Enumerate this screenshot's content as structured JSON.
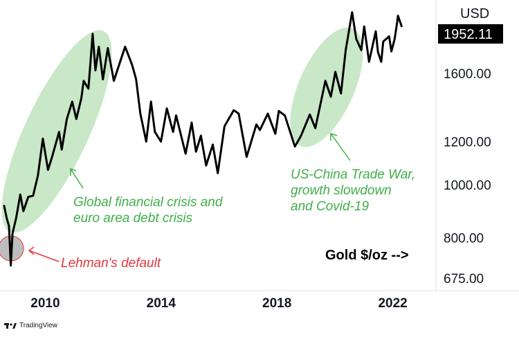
{
  "chart_data": {
    "type": "line",
    "series": [
      {
        "values": [
          [
            "2008-08-01",
            915
          ],
          [
            "2008-09-01",
            870
          ],
          [
            "2008-10-01",
            840
          ],
          [
            "2008-10-24",
            712
          ],
          [
            "2008-11-15",
            815
          ],
          [
            "2008-12-31",
            870
          ],
          [
            "2009-02-20",
            960
          ],
          [
            "2009-04-01",
            895
          ],
          [
            "2009-06-01",
            950
          ],
          [
            "2009-08-01",
            955
          ],
          [
            "2009-10-01",
            1040
          ],
          [
            "2009-12-02",
            1215
          ],
          [
            "2010-02-05",
            1065
          ],
          [
            "2010-04-01",
            1130
          ],
          [
            "2010-06-25",
            1250
          ],
          [
            "2010-07-28",
            1160
          ],
          [
            "2010-10-01",
            1320
          ],
          [
            "2010-12-07",
            1420
          ],
          [
            "2011-01-28",
            1320
          ],
          [
            "2011-04-01",
            1440
          ],
          [
            "2011-05-01",
            1550
          ],
          [
            "2011-06-30",
            1500
          ],
          [
            "2011-08-22",
            1890
          ],
          [
            "2011-09-26",
            1620
          ],
          [
            "2011-11-08",
            1790
          ],
          [
            "2011-12-29",
            1560
          ],
          [
            "2012-02-29",
            1780
          ],
          [
            "2012-05-15",
            1550
          ],
          [
            "2012-10-05",
            1790
          ],
          [
            "2012-12-31",
            1660
          ],
          [
            "2013-02-20",
            1560
          ],
          [
            "2013-04-15",
            1350
          ],
          [
            "2013-06-28",
            1200
          ],
          [
            "2013-08-27",
            1420
          ],
          [
            "2013-10-15",
            1250
          ],
          [
            "2013-12-31",
            1200
          ],
          [
            "2014-03-15",
            1380
          ],
          [
            "2014-06-01",
            1250
          ],
          [
            "2014-07-10",
            1340
          ],
          [
            "2014-11-06",
            1140
          ],
          [
            "2015-01-22",
            1300
          ],
          [
            "2015-03-17",
            1150
          ],
          [
            "2015-05-18",
            1230
          ],
          [
            "2015-07-24",
            1085
          ],
          [
            "2015-10-15",
            1185
          ],
          [
            "2015-12-17",
            1050
          ],
          [
            "2016-03-11",
            1280
          ],
          [
            "2016-07-06",
            1370
          ],
          [
            "2016-09-06",
            1350
          ],
          [
            "2016-12-15",
            1125
          ],
          [
            "2017-04-17",
            1290
          ],
          [
            "2017-06-01",
            1260
          ],
          [
            "2017-09-08",
            1350
          ],
          [
            "2017-12-12",
            1240
          ],
          [
            "2018-01-25",
            1365
          ],
          [
            "2018-04-11",
            1340
          ],
          [
            "2018-08-16",
            1175
          ],
          [
            "2018-11-01",
            1230
          ],
          [
            "2019-02-20",
            1345
          ],
          [
            "2019-05-01",
            1270
          ],
          [
            "2019-09-04",
            1550
          ],
          [
            "2019-11-12",
            1450
          ],
          [
            "2020-01-08",
            1610
          ],
          [
            "2020-03-19",
            1470
          ],
          [
            "2020-05-18",
            1765
          ],
          [
            "2020-08-06",
            2070
          ],
          [
            "2020-09-28",
            1850
          ],
          [
            "2020-11-30",
            1765
          ],
          [
            "2021-01-06",
            1950
          ],
          [
            "2021-03-08",
            1680
          ],
          [
            "2021-06-01",
            1910
          ],
          [
            "2021-06-29",
            1750
          ],
          [
            "2021-08-09",
            1680
          ],
          [
            "2021-09-03",
            1830
          ],
          [
            "2021-11-16",
            1870
          ],
          [
            "2021-12-15",
            1755
          ],
          [
            "2022-01-25",
            1850
          ],
          [
            "2022-02-24",
            1975
          ],
          [
            "2022-03-08",
            2040
          ],
          [
            "2022-04-22",
            1952.11
          ]
        ]
      }
    ],
    "y_scale": "log",
    "ylim": [
      640,
      2180
    ],
    "xlim": [
      "2008-08-01",
      "2023-06-30"
    ],
    "x_tick_labels": [
      "2010",
      "2014",
      "2018",
      "2022"
    ],
    "y_tick_labels": [
      "1600.00",
      "1200.00",
      "1000.00",
      "800.00",
      "675.00"
    ],
    "y_tick_values": [
      1600,
      1200,
      1000,
      800,
      675
    ],
    "currency": "USD",
    "last_price": "1952.11",
    "grid": false,
    "series_title": "Gold $/oz -->",
    "annotations": [
      {
        "lines": [
          "Global financial crisis and",
          "euro area debt crisis"
        ],
        "color": "#3fae49"
      },
      {
        "lines": [
          "US-China Trade War,",
          "growth slowdown",
          "and Covid-19"
        ],
        "color": "#3fae49"
      },
      {
        "lines": [
          "Lehman's default"
        ],
        "color": "#e2383f"
      }
    ],
    "colors": {
      "line": "#000000",
      "highlight": "#b7e0b4",
      "lehman_fill": "#bdbdbd",
      "lehman_edge": "#e2383f",
      "price_badge": "#000000"
    }
  },
  "footer": {
    "brand": "TradingView"
  }
}
